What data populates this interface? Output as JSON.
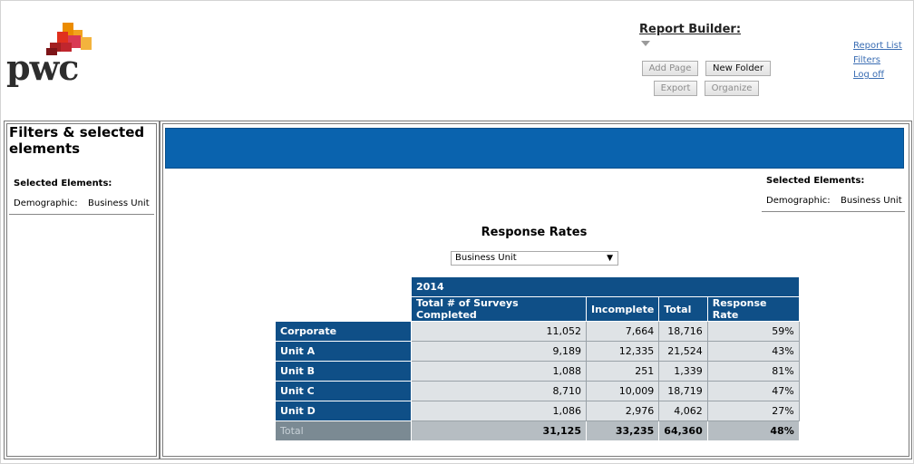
{
  "brand": {
    "logo_text": "pwc",
    "colors": {
      "logo_red": "#d93954",
      "logo_orange": "#eb8c00",
      "logo_dark_red": "#a32020",
      "band_blue": "#0a63ae",
      "table_blue": "#0f4f87"
    }
  },
  "header": {
    "report_builder_label": "Report Builder:",
    "buttons": {
      "add_page": "Add Page",
      "new_folder": "New Folder",
      "export": "Export",
      "organize": "Organize"
    },
    "links": {
      "report_list": "Report List",
      "filters": "Filters",
      "log_off": "Log off"
    }
  },
  "sidebar": {
    "title": "Filters & selected elements",
    "selected_heading": "Selected Elements:",
    "demographic_label": "Demographic:",
    "demographic_value": "Business Unit"
  },
  "main": {
    "selected_heading": "Selected Elements:",
    "demographic_label": "Demographic:",
    "demographic_value": "Business Unit",
    "report_title": "Response Rates",
    "dropdown_value": "Business Unit",
    "table": {
      "year": "2014",
      "columns": [
        "Total # of Surveys Completed",
        "Incomplete",
        "Total",
        "Response Rate"
      ],
      "rows": [
        {
          "label": "Corporate",
          "values": [
            "11,052",
            "7,664",
            "18,716",
            "59%"
          ]
        },
        {
          "label": "Unit A",
          "values": [
            "9,189",
            "12,335",
            "21,524",
            "43%"
          ]
        },
        {
          "label": "Unit B",
          "values": [
            "1,088",
            "251",
            "1,339",
            "81%"
          ]
        },
        {
          "label": "Unit C",
          "values": [
            "8,710",
            "10,009",
            "18,719",
            "47%"
          ]
        },
        {
          "label": "Unit D",
          "values": [
            "1,086",
            "2,976",
            "4,062",
            "27%"
          ]
        }
      ],
      "total": {
        "label": "Total",
        "values": [
          "31,125",
          "33,235",
          "64,360",
          "48%"
        ]
      }
    }
  }
}
